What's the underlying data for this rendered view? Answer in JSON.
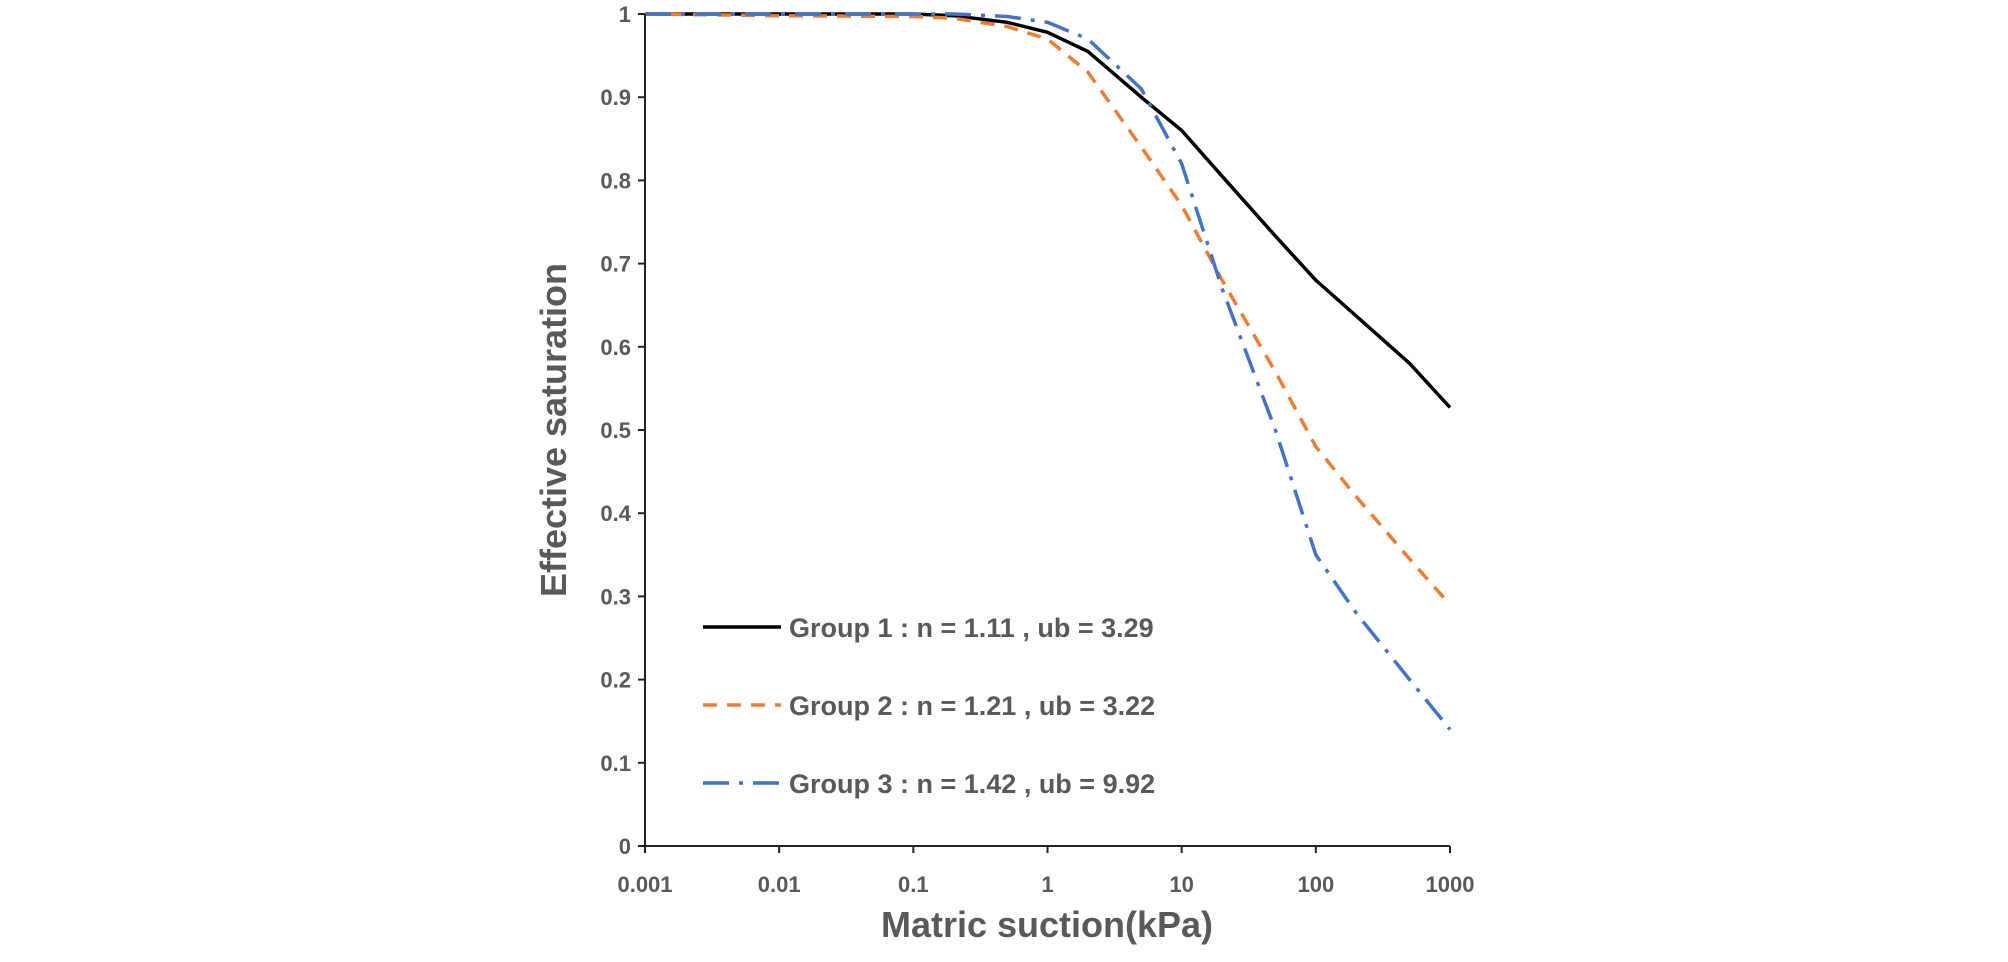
{
  "chart_data": {
    "type": "line",
    "title": "",
    "xlabel": "Matric suction(kPa)",
    "ylabel": "Effective saturation",
    "x_scale": "log",
    "xlim": [
      0.001,
      1000
    ],
    "ylim": [
      0,
      1
    ],
    "x_ticks": [
      "0.001",
      "0.01",
      "0.1",
      "1",
      "10",
      "100",
      "1000"
    ],
    "y_ticks": [
      "0",
      "0.1",
      "0.2",
      "0.3",
      "0.4",
      "0.5",
      "0.6",
      "0.7",
      "0.8",
      "0.9",
      "1"
    ],
    "grid": false,
    "legend_position": "bottom-left",
    "series": [
      {
        "name": "Group 1 : n = 1.11 , ub = 3.29",
        "color": "#000000",
        "dash": "solid",
        "points": [
          [
            0.001,
            1.0
          ],
          [
            0.01,
            1.0
          ],
          [
            0.1,
            1.0
          ],
          [
            0.2,
            0.998
          ],
          [
            0.5,
            0.99
          ],
          [
            1,
            0.978
          ],
          [
            2,
            0.955
          ],
          [
            5,
            0.9
          ],
          [
            10,
            0.86
          ],
          [
            20,
            0.805
          ],
          [
            50,
            0.733
          ],
          [
            100,
            0.68
          ],
          [
            200,
            0.637
          ],
          [
            500,
            0.58
          ],
          [
            1000,
            0.527
          ]
        ]
      },
      {
        "name": "Group 2 : n = 1.21 , ub = 3.22",
        "color": "#ED7D31",
        "dash": "dash",
        "points": [
          [
            0.001,
            1.0
          ],
          [
            0.01,
            0.998
          ],
          [
            0.1,
            0.997
          ],
          [
            0.2,
            0.995
          ],
          [
            0.5,
            0.985
          ],
          [
            1,
            0.97
          ],
          [
            2,
            0.93
          ],
          [
            5,
            0.84
          ],
          [
            10,
            0.77
          ],
          [
            20,
            0.68
          ],
          [
            50,
            0.57
          ],
          [
            100,
            0.48
          ],
          [
            200,
            0.42
          ],
          [
            500,
            0.345
          ],
          [
            1000,
            0.29
          ]
        ]
      },
      {
        "name": "Group 3 : n = 1.42 , ub = 9.92",
        "color": "#4472C4",
        "dash": "dashdot",
        "points": [
          [
            0.001,
            1.0
          ],
          [
            0.01,
            1.0
          ],
          [
            0.1,
            1.0
          ],
          [
            0.2,
            1.0
          ],
          [
            0.5,
            0.997
          ],
          [
            1,
            0.99
          ],
          [
            2,
            0.97
          ],
          [
            5,
            0.91
          ],
          [
            10,
            0.82
          ],
          [
            20,
            0.67
          ],
          [
            50,
            0.5
          ],
          [
            100,
            0.35
          ],
          [
            200,
            0.28
          ],
          [
            500,
            0.2
          ],
          [
            1000,
            0.14
          ]
        ]
      }
    ]
  }
}
